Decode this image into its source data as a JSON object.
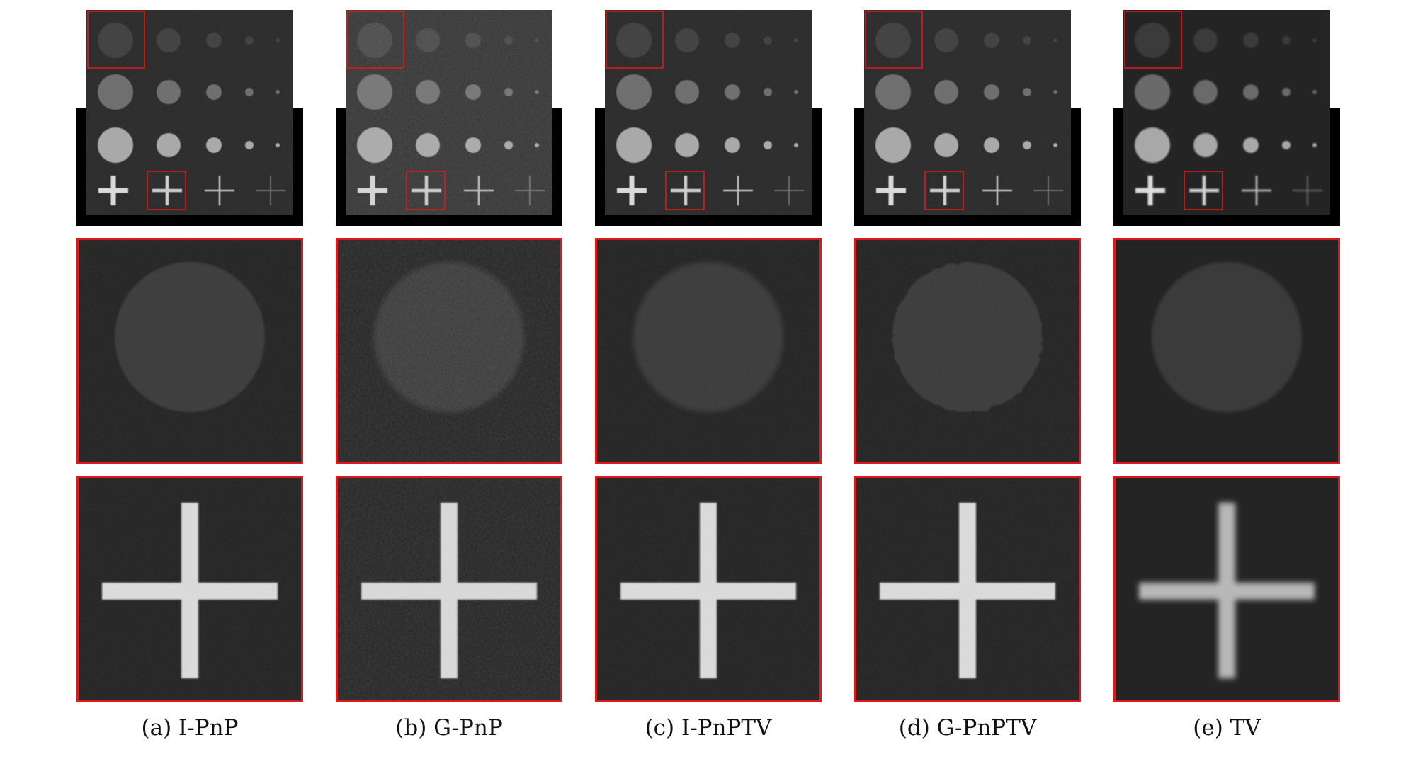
{
  "figure": {
    "panels": [
      {
        "id": "a",
        "caption": "(a) I-PnP",
        "noise": "low",
        "cross_sharpness": "sharp",
        "circle_edge": "clean"
      },
      {
        "id": "b",
        "caption": "(b) G-PnP",
        "noise": "high",
        "cross_sharpness": "sharp",
        "circle_edge": "soft"
      },
      {
        "id": "c",
        "caption": "(c) I-PnPTV",
        "noise": "low",
        "cross_sharpness": "sharp",
        "circle_edge": "soft"
      },
      {
        "id": "d",
        "caption": "(d) G-PnPTV",
        "noise": "low",
        "cross_sharpness": "sharp",
        "circle_edge": "rough"
      },
      {
        "id": "e",
        "caption": "(e) TV",
        "noise": "none",
        "cross_sharpness": "blurred",
        "circle_edge": "smooth"
      }
    ],
    "colors": {
      "highlight_box": "#e01818",
      "background_dark": "#242424",
      "frame_black": "#000000",
      "circle_top_row": "#3a3a3a",
      "circle_mid_row": "#6a6a6a",
      "circle_bottom_row": "#a8a8a8",
      "cross": "#dcdcdc"
    }
  }
}
